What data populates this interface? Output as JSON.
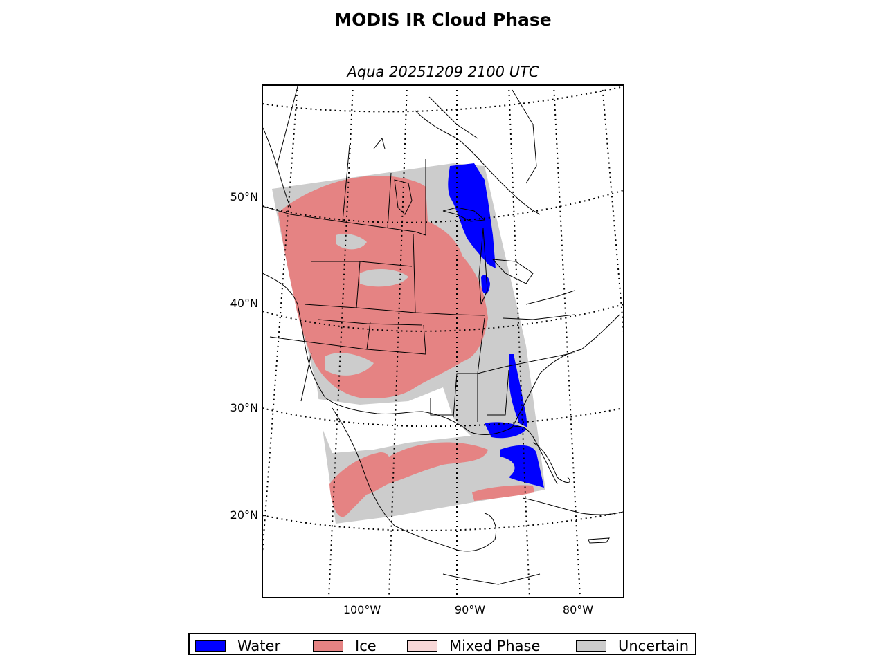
{
  "figure": {
    "title": "MODIS IR Cloud Phase",
    "subtitle": "Aqua 20251209 2100 UTC"
  },
  "map": {
    "projection": "lambert-conformal",
    "lat_labels": [
      "50°N",
      "40°N",
      "30°N",
      "20°N"
    ],
    "lon_labels": [
      "100°W",
      "90°W",
      "80°W"
    ],
    "graticule_style": "dotted",
    "colors": {
      "water": "#0000ff",
      "ice": "#e58383",
      "mixed": "#f7d7d7",
      "uncertain": "#cccccc",
      "land_outline": "#000000"
    }
  },
  "legend": {
    "items": [
      {
        "label": "Water",
        "color": "#0000ff"
      },
      {
        "label": "Ice",
        "color": "#e58383"
      },
      {
        "label": "Mixed Phase",
        "color": "#f7d7d7"
      },
      {
        "label": "Uncertain",
        "color": "#cccccc"
      }
    ]
  }
}
